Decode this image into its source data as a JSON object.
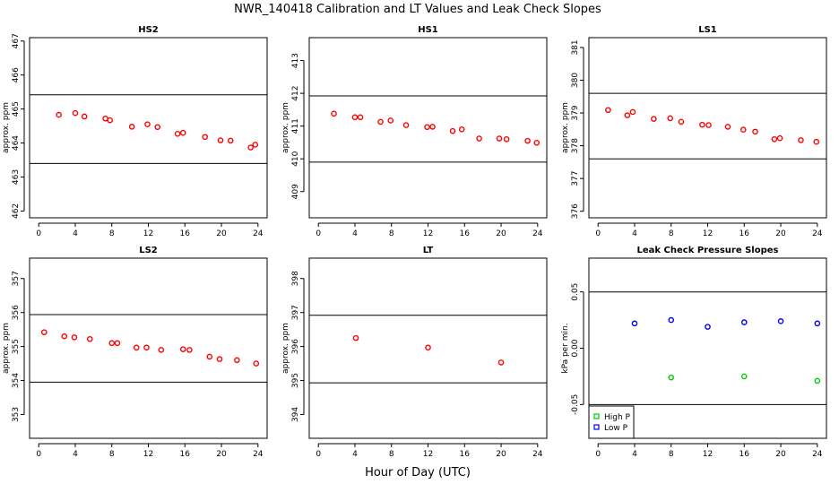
{
  "title": "NWR_140418  Calibration and LT Values and Leak Check Slopes",
  "xlabel": "Hour of Day (UTC)",
  "chart_data": [
    {
      "type": "scatter",
      "title": "HS2",
      "ylabel": "approx. ppm",
      "xlim": [
        -1,
        25
      ],
      "ylim": [
        461.8,
        467.1
      ],
      "x_ticks": [
        0,
        4,
        8,
        12,
        16,
        20,
        24
      ],
      "y_ticks": [
        462,
        463,
        464,
        465,
        466,
        467
      ],
      "hlines": [
        465.42,
        463.4
      ],
      "series": [
        {
          "color": "#ff0000",
          "x": [
            2.2,
            4.0,
            5.0,
            7.3,
            7.8,
            10.2,
            11.9,
            13.0,
            15.2,
            15.8,
            18.2,
            19.9,
            21.0,
            23.2,
            23.7
          ],
          "y": [
            464.83,
            464.88,
            464.78,
            464.72,
            464.67,
            464.48,
            464.55,
            464.47,
            464.27,
            464.3,
            464.18,
            464.08,
            464.07,
            463.87,
            463.95
          ]
        }
      ]
    },
    {
      "type": "scatter",
      "title": "HS1",
      "ylabel": "approx. ppm",
      "xlim": [
        -1,
        25
      ],
      "ylim": [
        408.2,
        413.7
      ],
      "x_ticks": [
        0,
        4,
        8,
        12,
        16,
        20,
        24
      ],
      "y_ticks": [
        409,
        410,
        411,
        412,
        413
      ],
      "hlines": [
        411.92,
        409.9
      ],
      "series": [
        {
          "color": "#ff0000",
          "x": [
            1.7,
            4.0,
            4.6,
            6.8,
            7.9,
            9.6,
            11.9,
            12.5,
            14.7,
            15.7,
            17.6,
            19.8,
            20.6,
            22.9,
            23.9
          ],
          "y": [
            411.38,
            411.27,
            411.27,
            411.13,
            411.17,
            411.03,
            410.97,
            410.98,
            410.85,
            410.9,
            410.62,
            410.62,
            410.6,
            410.55,
            410.49
          ]
        }
      ]
    },
    {
      "type": "scatter",
      "title": "LS1",
      "ylabel": "approx. ppm",
      "xlim": [
        -1,
        25
      ],
      "ylim": [
        375.8,
        381.3
      ],
      "x_ticks": [
        0,
        4,
        8,
        12,
        16,
        20,
        24
      ],
      "y_ticks": [
        376,
        377,
        378,
        379,
        380,
        381
      ],
      "hlines": [
        379.6,
        377.6
      ],
      "series": [
        {
          "color": "#ff0000",
          "x": [
            1.1,
            3.2,
            3.8,
            6.1,
            7.9,
            9.1,
            11.4,
            12.1,
            14.2,
            15.9,
            17.2,
            19.3,
            19.9,
            22.2,
            23.9
          ],
          "y": [
            379.09,
            378.93,
            379.03,
            378.82,
            378.84,
            378.73,
            378.64,
            378.63,
            378.58,
            378.49,
            378.43,
            378.2,
            378.23,
            378.17,
            378.12
          ]
        }
      ]
    },
    {
      "type": "scatter",
      "title": "LS2",
      "ylabel": "approx. ppm",
      "xlim": [
        -1,
        25
      ],
      "ylim": [
        352.3,
        357.6
      ],
      "x_ticks": [
        0,
        4,
        8,
        12,
        16,
        20,
        24
      ],
      "y_ticks": [
        353,
        354,
        355,
        356,
        357
      ],
      "hlines": [
        355.94,
        353.95
      ],
      "series": [
        {
          "color": "#ff0000",
          "x": [
            0.6,
            2.8,
            3.9,
            5.6,
            8.0,
            8.6,
            10.7,
            11.8,
            13.4,
            15.8,
            16.5,
            18.7,
            19.8,
            21.7,
            23.8
          ],
          "y": [
            355.42,
            355.3,
            355.27,
            355.22,
            355.1,
            355.1,
            354.97,
            354.97,
            354.9,
            354.92,
            354.9,
            354.7,
            354.63,
            354.6,
            354.5
          ]
        }
      ]
    },
    {
      "type": "scatter",
      "title": "LT",
      "ylabel": "approx. ppm",
      "xlim": [
        -1,
        25
      ],
      "ylim": [
        393.3,
        398.6
      ],
      "x_ticks": [
        0,
        4,
        8,
        12,
        16,
        20,
        24
      ],
      "y_ticks": [
        394,
        395,
        396,
        397,
        398
      ],
      "hlines": [
        396.92,
        394.93
      ],
      "series": [
        {
          "color": "#ff0000",
          "x": [
            4.1,
            12.0,
            20.0
          ],
          "y": [
            396.25,
            395.97,
            395.53
          ]
        }
      ]
    },
    {
      "type": "scatter",
      "title": "Leak Check Pressure Slopes",
      "ylabel": "kPa per min.",
      "xlim": [
        -1,
        25
      ],
      "ylim": [
        -0.08,
        0.08
      ],
      "x_ticks": [
        0,
        4,
        8,
        12,
        16,
        20,
        24
      ],
      "y_ticks": [
        -0.05,
        0.0,
        0.05
      ],
      "y_tick_labels": [
        "-0.05",
        "0.00",
        "0.05"
      ],
      "hlines": [
        0.05,
        -0.05
      ],
      "legend_position": "bottom-left",
      "series": [
        {
          "name": "High P",
          "color": "#00cc00",
          "x": [
            8.0,
            16.0,
            24.0
          ],
          "y": [
            -0.026,
            -0.025,
            -0.029
          ]
        },
        {
          "name": "Low P",
          "color": "#0000ff",
          "x": [
            4.0,
            8.0,
            12.0,
            16.0,
            20.0,
            24.0
          ],
          "y": [
            0.022,
            0.025,
            0.019,
            0.023,
            0.024,
            0.022
          ]
        }
      ]
    }
  ]
}
